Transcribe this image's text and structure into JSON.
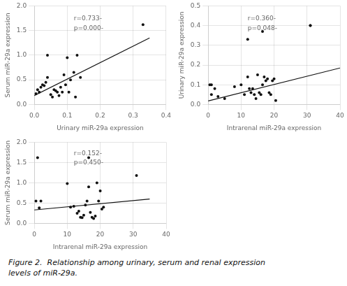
{
  "chart_data": [
    {
      "type": "scatter",
      "xlabel": "Urinary miR-29a expression",
      "ylabel": "Serum miR-29a expression",
      "annotation": "r=0.733-\np=0.000-",
      "xlim": [
        0,
        0.4
      ],
      "ylim": [
        0,
        2.0
      ],
      "xticks": [
        {
          "value": 0,
          "label": "0.0"
        },
        0.1,
        0.2,
        0.3,
        0.4
      ],
      "yticks": [
        {
          "value": 0,
          "label": "0.0"
        },
        0.5,
        {
          "value": 1,
          "label": "1.0"
        },
        1.5,
        {
          "value": 2,
          "label": "2.0"
        }
      ],
      "series": [
        {
          "type": "scatter",
          "color": "#111111",
          "x": [
            0.005,
            0.01,
            0.015,
            0.02,
            0.025,
            0.03,
            0.035,
            0.04,
            0.05,
            0.055,
            0.06,
            0.065,
            0.07,
            0.075,
            0.08,
            0.085,
            0.09,
            0.1,
            0.105,
            0.11,
            0.12,
            0.125,
            0.13,
            0.14,
            0.33
          ],
          "values": [
            0.22,
            0.3,
            0.25,
            0.35,
            0.4,
            0.38,
            0.45,
            0.55,
            0.2,
            0.15,
            0.3,
            0.28,
            0.25,
            0.18,
            0.35,
            0.25,
            0.6,
            0.95,
            0.25,
            0.5,
            0.65,
            0.15,
            1.0,
            0.55,
            1.62
          ]
        },
        {
          "type": "scatter",
          "color": "#111111",
          "x": [
            0.04,
            0.095
          ],
          "values": [
            1.0,
            0.4
          ]
        },
        {
          "type": "line",
          "color": "#111111",
          "x": [
            0.0,
            0.35
          ],
          "values": [
            0.18,
            1.35
          ]
        }
      ]
    },
    {
      "type": "scatter",
      "xlabel": "Intrarenal miR-29a expression",
      "ylabel": "Urinary miR-29a expression",
      "annotation": "r=0.360-\np=0.048-",
      "xlim": [
        0,
        40
      ],
      "ylim": [
        0,
        0.5
      ],
      "xticks": [
        0,
        10,
        20,
        30,
        40
      ],
      "yticks": [
        {
          "value": 0,
          "label": "0.0"
        },
        0.1,
        0.2,
        0.3,
        0.4,
        0.5
      ],
      "series": [
        {
          "type": "scatter",
          "color": "#111111",
          "x": [
            0.5,
            1.0,
            2.0,
            3.0,
            5.0,
            8.0,
            10.0,
            11.0,
            12.0,
            12.5,
            13.0,
            13.5,
            14.0,
            14.5,
            15.0,
            15.5,
            16.0,
            16.5,
            17.0,
            17.5,
            18.0,
            18.5,
            19.0,
            19.5,
            20.0,
            20.5,
            31.0
          ],
          "values": [
            0.1,
            0.05,
            0.08,
            0.04,
            0.03,
            0.09,
            0.1,
            0.05,
            0.14,
            0.08,
            0.06,
            0.08,
            0.05,
            0.03,
            0.15,
            0.06,
            0.05,
            0.1,
            0.14,
            0.12,
            0.13,
            0.06,
            0.05,
            0.12,
            0.13,
            0.02,
            0.4
          ]
        },
        {
          "type": "scatter",
          "color": "#111111",
          "x": [
            1.0,
            12.0,
            16.5,
            31.0
          ],
          "values": [
            0.1,
            0.33,
            0.37,
            0.4
          ]
        },
        {
          "type": "line",
          "color": "#111111",
          "x": [
            0,
            40
          ],
          "values": [
            0.018,
            0.185
          ]
        }
      ]
    },
    {
      "type": "scatter",
      "xlabel": "Intrarenal miR-29a expression",
      "ylabel": "Serum miR-29a expression",
      "annotation": "r=0.152-\np=0.450-",
      "xlim": [
        0,
        40
      ],
      "ylim": [
        0,
        2.0
      ],
      "xticks": [
        0,
        10,
        20,
        30,
        40
      ],
      "yticks": [
        {
          "value": 0,
          "label": "0.0"
        },
        0.5,
        {
          "value": 1,
          "label": "1.0"
        },
        1.5,
        {
          "value": 2,
          "label": "2.0"
        }
      ],
      "series": [
        {
          "type": "scatter",
          "color": "#111111",
          "x": [
            0.5,
            1.5,
            2.0,
            10.0,
            11.0,
            12.0,
            13.0,
            13.5,
            14.0,
            14.5,
            15.0,
            15.5,
            16.0,
            16.5,
            17.0,
            17.5,
            18.0,
            18.5,
            19.0,
            19.5,
            20.0,
            20.5,
            21.0,
            31.0
          ],
          "values": [
            0.55,
            0.38,
            0.55,
            0.98,
            0.4,
            0.42,
            0.25,
            0.3,
            0.15,
            0.14,
            0.2,
            0.45,
            0.55,
            0.9,
            0.27,
            0.15,
            0.12,
            0.18,
            1.0,
            0.55,
            0.8,
            0.35,
            0.4,
            1.18
          ]
        },
        {
          "type": "scatter",
          "color": "#111111",
          "x": [
            1.0,
            16.5
          ],
          "values": [
            1.62,
            1.62
          ]
        },
        {
          "type": "line",
          "color": "#111111",
          "x": [
            0,
            35
          ],
          "values": [
            0.33,
            0.6
          ]
        }
      ]
    }
  ],
  "caption": "Figure 2.  Relationship among urinary, serum and renal expression\nlevels of miR-29a."
}
